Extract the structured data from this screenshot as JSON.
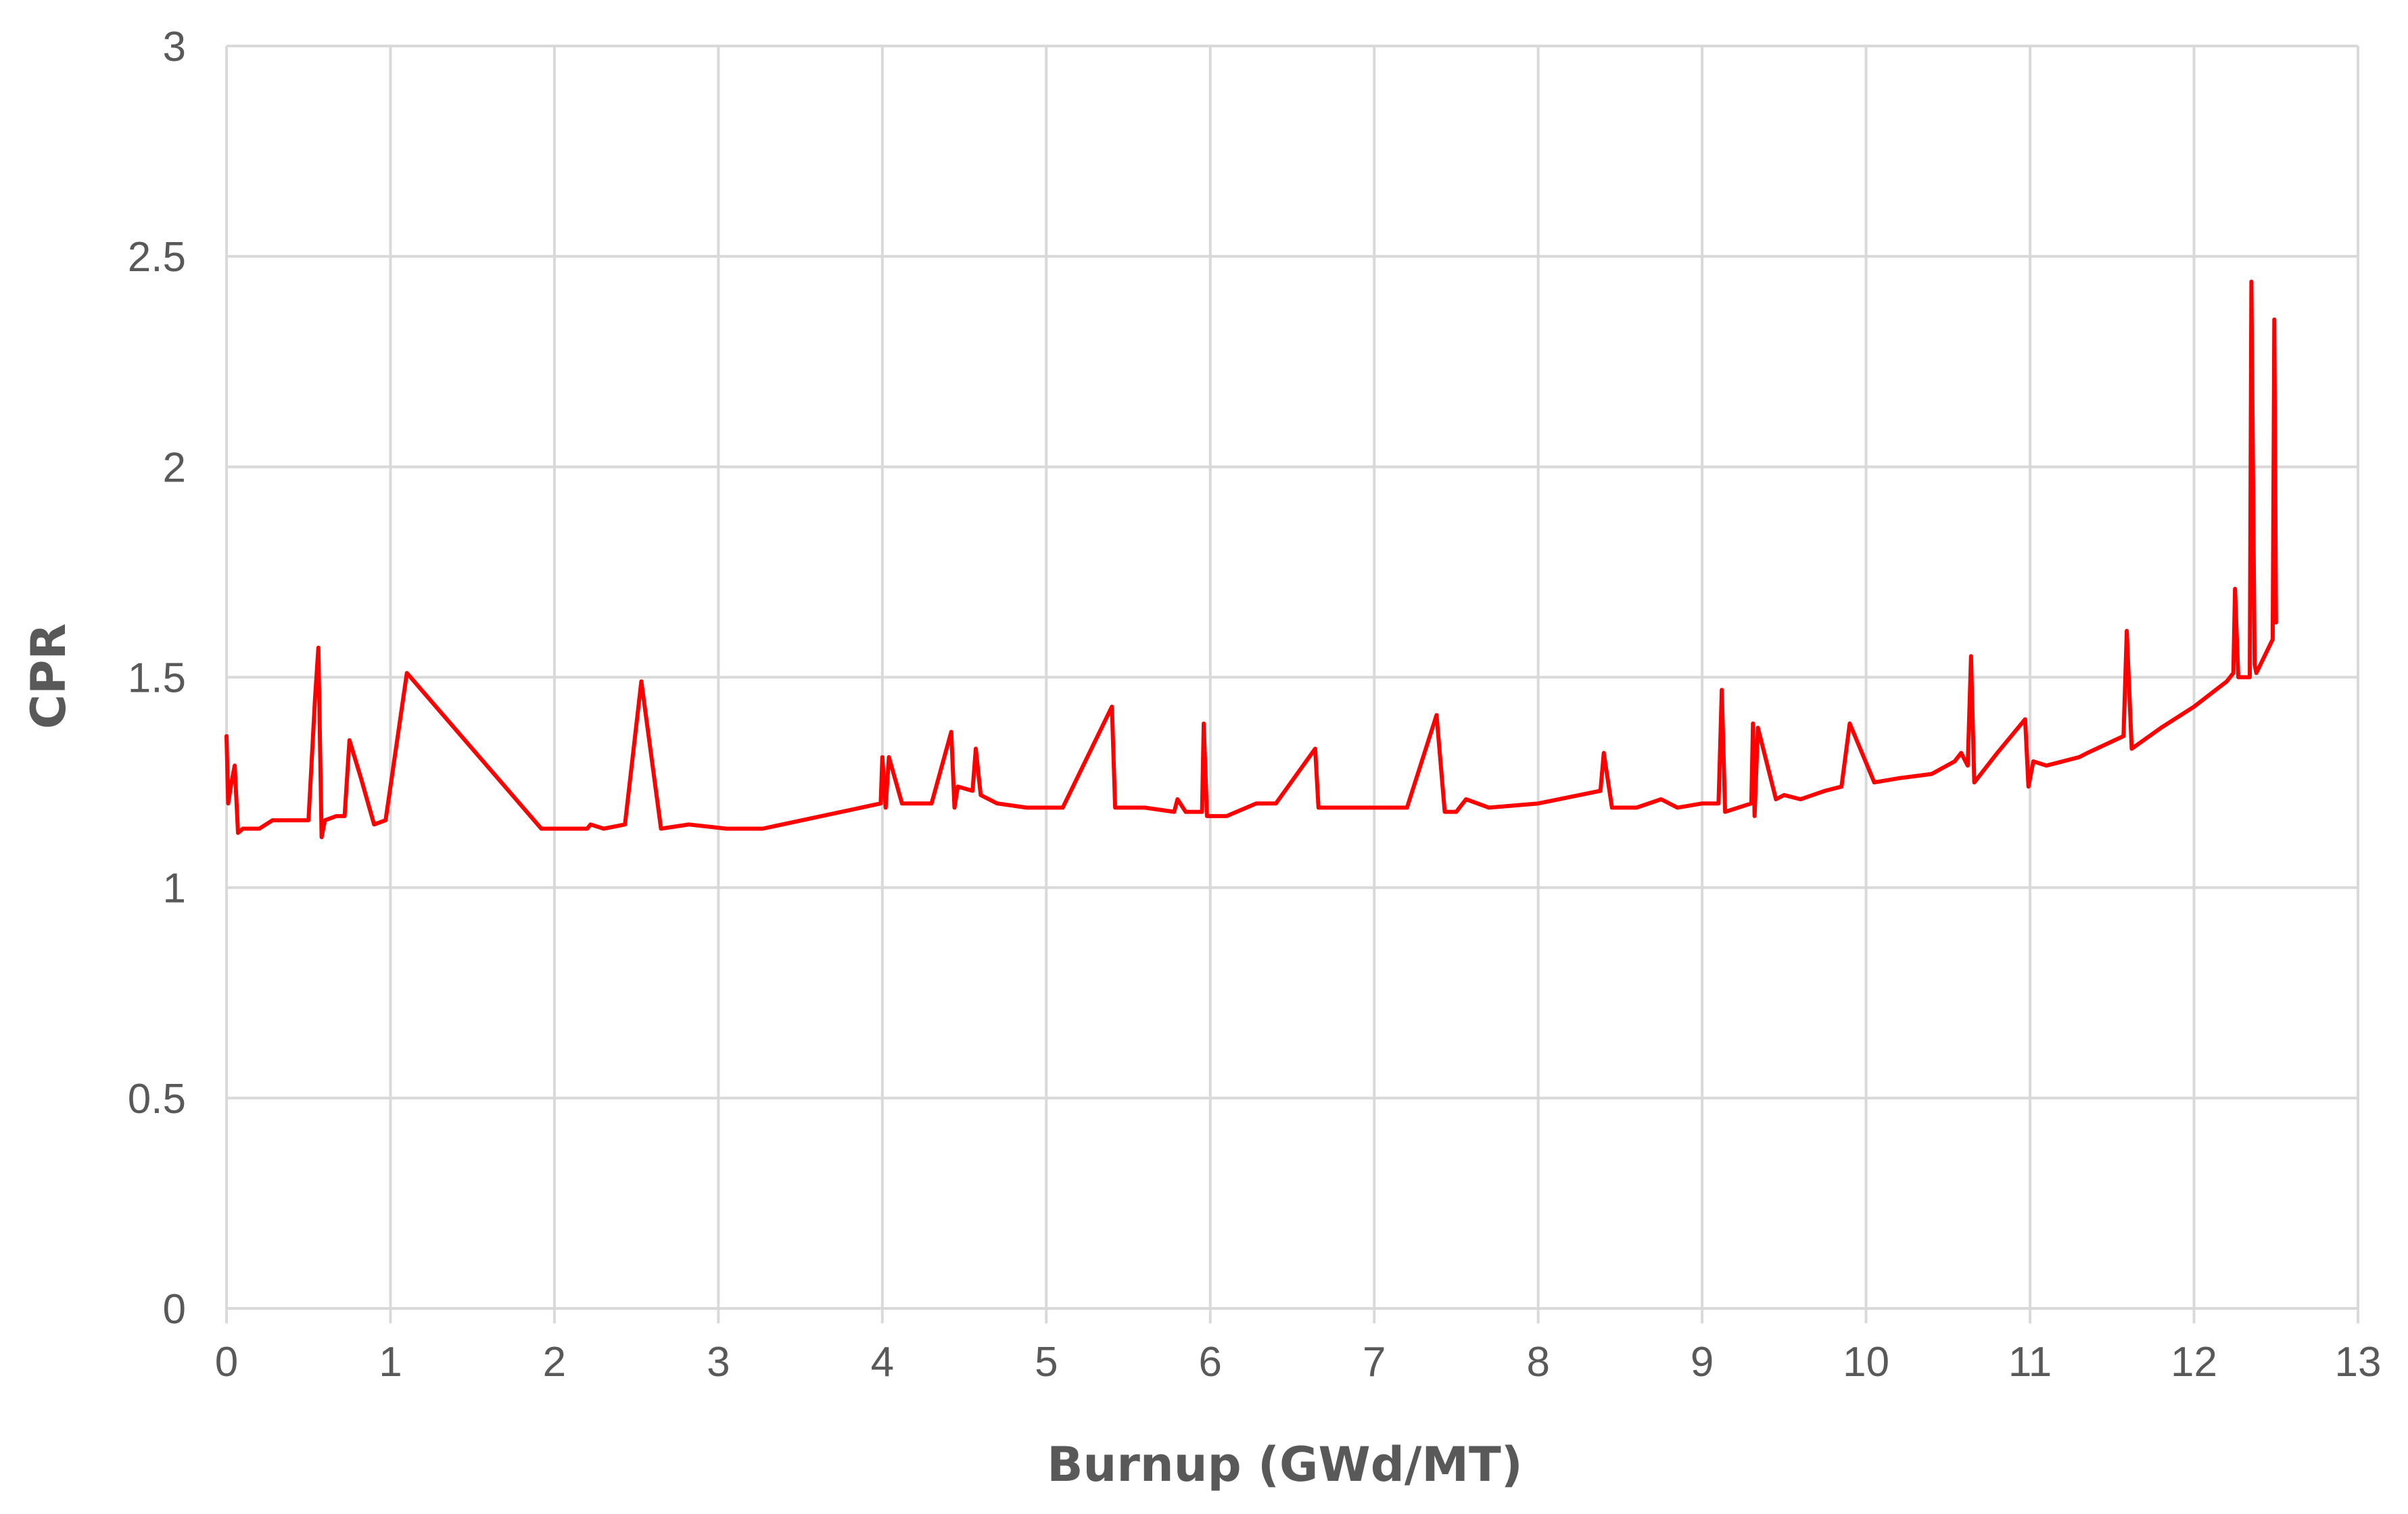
{
  "chart_data": {
    "type": "line",
    "title": "",
    "xlabel": "Burnup (GWd/MT)",
    "ylabel": "CPR",
    "xlim": [
      0,
      13
    ],
    "ylim": [
      0,
      3
    ],
    "x_ticks": [
      "0",
      "1",
      "2",
      "3",
      "4",
      "5",
      "6",
      "7",
      "8",
      "9",
      "10",
      "11",
      "12",
      "13"
    ],
    "y_ticks": [
      "0",
      "0.5",
      "1",
      "1.5",
      "2",
      "2.5",
      "3"
    ],
    "grid": true,
    "legend": "none",
    "series": [
      {
        "color": "#ff0000",
        "x": [
          0.0,
          0.01,
          0.03,
          0.05,
          0.07,
          0.1,
          0.2,
          0.28,
          0.5,
          0.54,
          0.56,
          0.58,
          0.6,
          0.67,
          0.72,
          0.75,
          0.82,
          0.9,
          0.97,
          1.1,
          1.92,
          2.2,
          2.22,
          2.3,
          2.43,
          2.53,
          2.65,
          2.82,
          3.05,
          3.27,
          3.99,
          4.0,
          4.02,
          4.04,
          4.12,
          4.3,
          4.42,
          4.44,
          4.46,
          4.55,
          4.57,
          4.6,
          4.7,
          4.88,
          5.0,
          5.1,
          5.4,
          5.42,
          5.6,
          5.78,
          5.8,
          5.85,
          5.95,
          5.96,
          5.98,
          6.1,
          6.28,
          6.4,
          6.64,
          6.66,
          6.8,
          7.0,
          7.2,
          7.38,
          7.43,
          7.5,
          7.56,
          7.7,
          8.0,
          8.38,
          8.4,
          8.45,
          8.6,
          8.75,
          8.85,
          9.0,
          9.1,
          9.12,
          9.14,
          9.3,
          9.31,
          9.32,
          9.34,
          9.45,
          9.5,
          9.6,
          9.75,
          9.85,
          9.9,
          10.05,
          10.2,
          10.4,
          10.54,
          10.58,
          10.62,
          10.64,
          10.66,
          10.8,
          10.97,
          10.99,
          11.02,
          11.1,
          11.3,
          11.35,
          11.57,
          11.59,
          11.62,
          11.8,
          12.0,
          12.2,
          12.24,
          12.25,
          12.27,
          12.34,
          12.35,
          12.37,
          12.38,
          12.48,
          12.49,
          12.5
        ],
        "y": [
          1.36,
          1.2,
          1.25,
          1.29,
          1.13,
          1.14,
          1.14,
          1.16,
          1.16,
          1.45,
          1.57,
          1.12,
          1.16,
          1.17,
          1.17,
          1.35,
          1.26,
          1.15,
          1.16,
          1.51,
          1.14,
          1.14,
          1.15,
          1.14,
          1.15,
          1.49,
          1.14,
          1.15,
          1.14,
          1.14,
          1.2,
          1.31,
          1.19,
          1.31,
          1.2,
          1.2,
          1.37,
          1.19,
          1.24,
          1.23,
          1.33,
          1.22,
          1.2,
          1.19,
          1.19,
          1.19,
          1.43,
          1.19,
          1.19,
          1.18,
          1.21,
          1.18,
          1.18,
          1.39,
          1.17,
          1.17,
          1.2,
          1.2,
          1.33,
          1.19,
          1.19,
          1.19,
          1.19,
          1.41,
          1.18,
          1.18,
          1.21,
          1.19,
          1.2,
          1.23,
          1.32,
          1.19,
          1.19,
          1.21,
          1.19,
          1.2,
          1.2,
          1.47,
          1.18,
          1.2,
          1.39,
          1.17,
          1.38,
          1.21,
          1.22,
          1.21,
          1.23,
          1.24,
          1.39,
          1.25,
          1.26,
          1.27,
          1.3,
          1.32,
          1.29,
          1.55,
          1.25,
          1.32,
          1.4,
          1.24,
          1.3,
          1.29,
          1.31,
          1.32,
          1.36,
          1.61,
          1.33,
          1.38,
          1.43,
          1.49,
          1.51,
          1.71,
          1.5,
          1.5,
          2.44,
          1.53,
          1.51,
          1.59,
          2.35,
          1.63
        ]
      }
    ]
  }
}
